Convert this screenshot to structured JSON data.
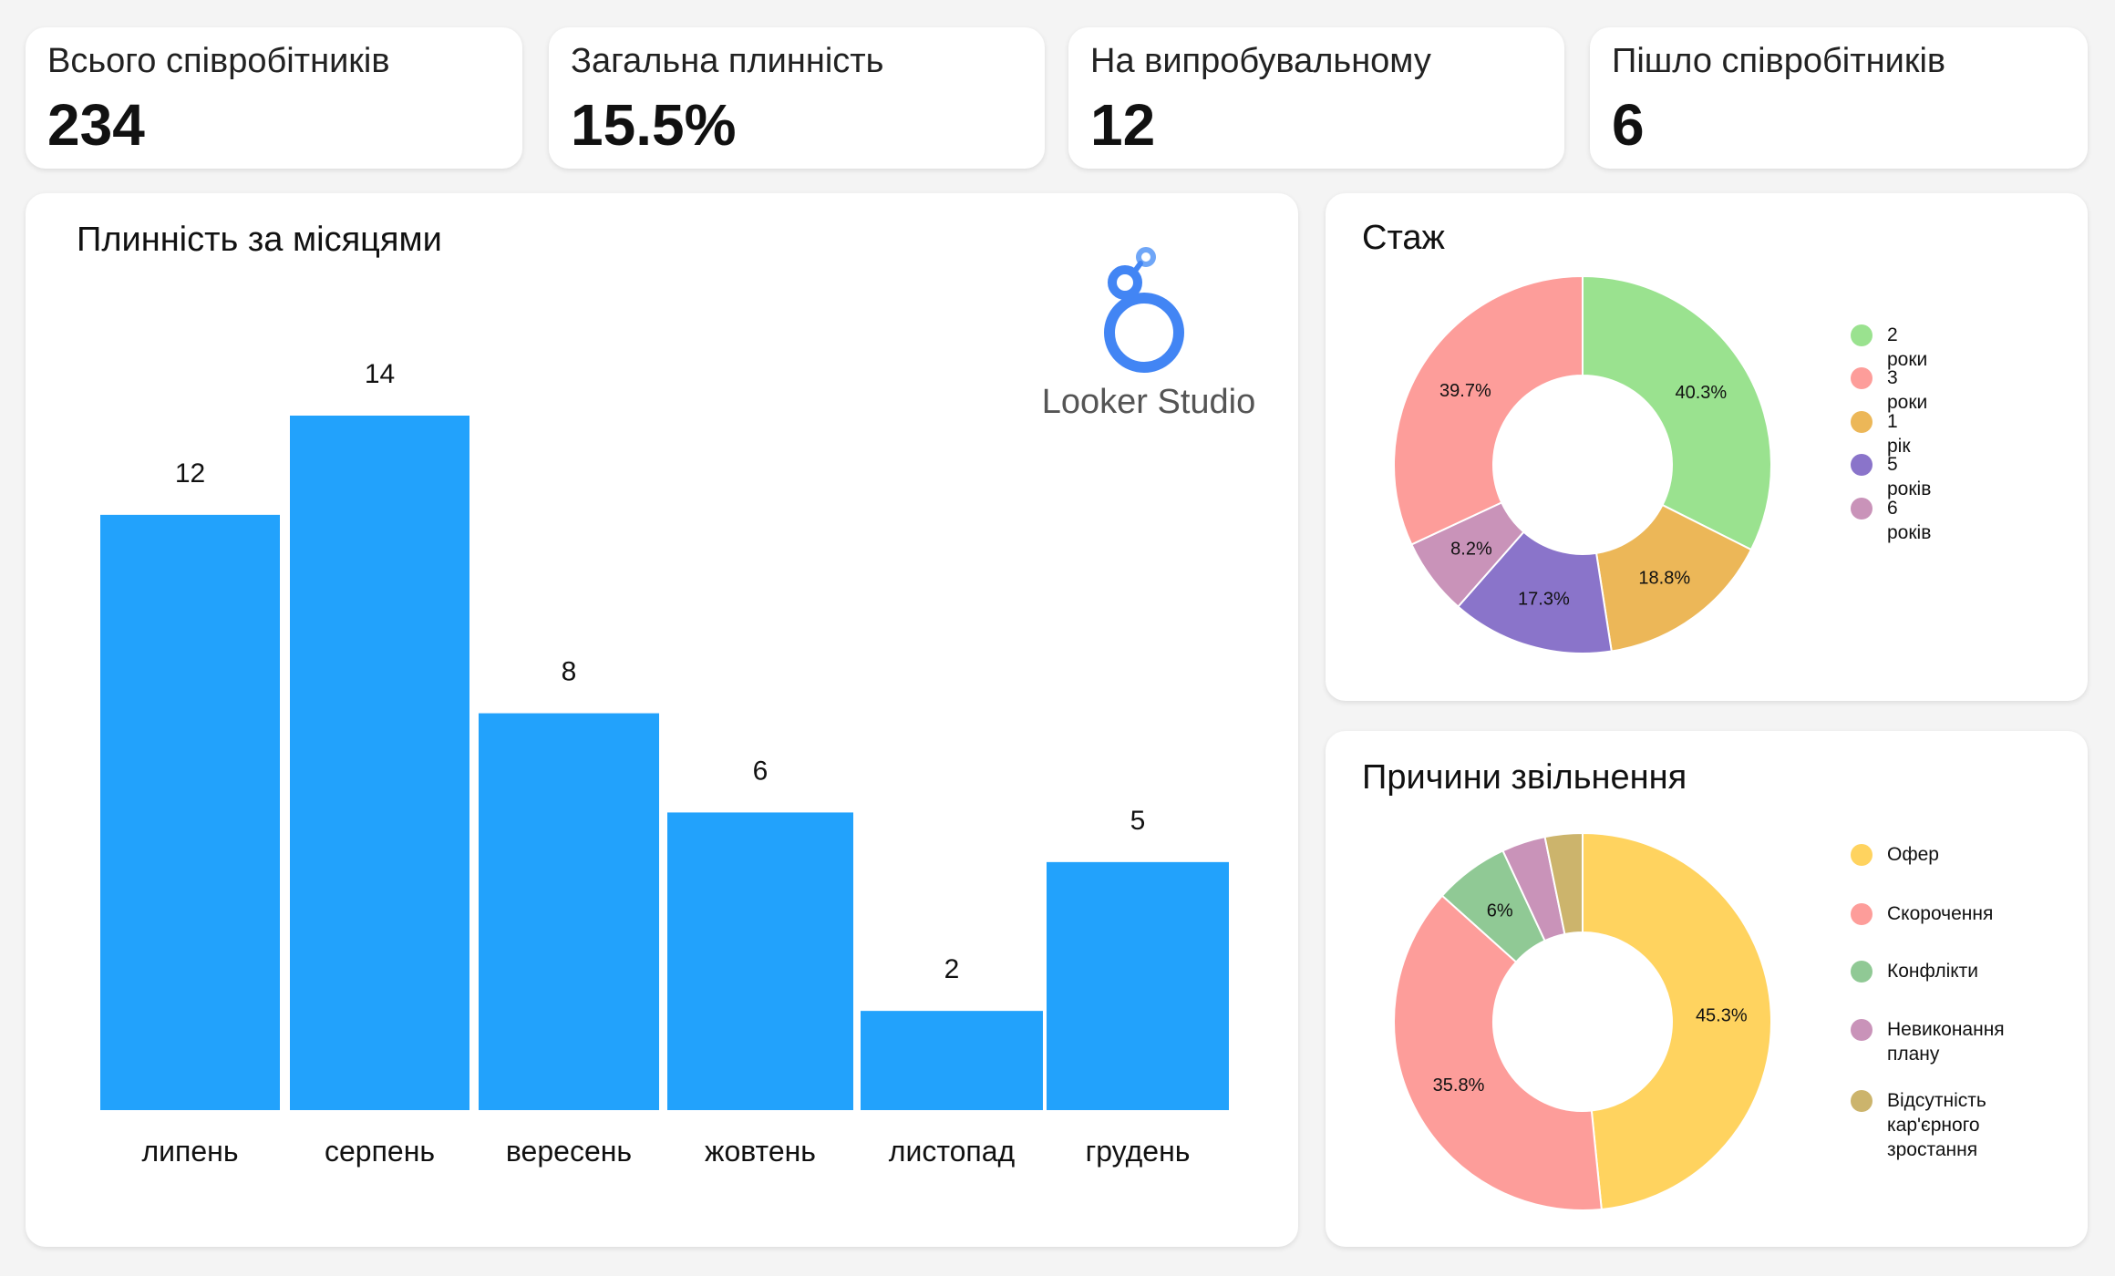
{
  "kpis": [
    {
      "label": "Всього співробітників",
      "value": "234"
    },
    {
      "label": "Загальна плинність",
      "value": "15.5%"
    },
    {
      "label": "На випробувальному",
      "value": "12"
    },
    {
      "label": "Пішло співробітників",
      "value": "6"
    }
  ],
  "logo": {
    "text": "Looker Studio",
    "icon": "looker-studio-logo",
    "color": "#4285f4"
  },
  "monthly_turnover": {
    "title": "Плинність за місяцями"
  },
  "tenure": {
    "title": "Стаж"
  },
  "reasons": {
    "title": "Причини звільнення"
  },
  "chart_data": [
    {
      "type": "bar",
      "title": "Плинність за місяцями",
      "categories": [
        "липень",
        "серпень",
        "вересень",
        "жовтень",
        "листопад",
        "грудень"
      ],
      "values": [
        12,
        14,
        8,
        6,
        2,
        5
      ],
      "color": "#22a2fc",
      "data_labels": true,
      "grid": false,
      "ylim": [
        0,
        14
      ]
    },
    {
      "type": "pie",
      "title": "Стаж",
      "donut": true,
      "legend": "right",
      "slices": [
        {
          "label": "2 роки",
          "value": 40.3,
          "display": "40.3%",
          "color": "#9ae28f"
        },
        {
          "label": "1 рік",
          "value": 18.8,
          "display": "18.8%",
          "color": "#ecb758"
        },
        {
          "label": "5 років",
          "value": 17.3,
          "display": "17.3%",
          "color": "#8a74ca"
        },
        {
          "label": "6 років",
          "value": 8.2,
          "display": "8.2%",
          "color": "#c993b9"
        },
        {
          "label": "3 роки",
          "value": 39.7,
          "display": "39.7%",
          "color": "#fd9d9a"
        }
      ],
      "legend_order": [
        "2 роки",
        "3 роки",
        "1 рік",
        "5 років",
        "6 років"
      ]
    },
    {
      "type": "pie",
      "title": "Причини звільнення",
      "donut": true,
      "legend": "right",
      "slices": [
        {
          "label": "Офер",
          "value": 45.3,
          "display": "45.3%",
          "color": "#ffd35f"
        },
        {
          "label": "Скорочення",
          "value": 35.8,
          "display": "35.8%",
          "color": "#fd9d9a"
        },
        {
          "label": "Конфлікти",
          "value": 6,
          "display": "6%",
          "color": "#90c995"
        },
        {
          "label": "Невиконання плану",
          "value": 3.5,
          "display": "",
          "color": "#c993b9"
        },
        {
          "label": "Відсутність кар'єрного зростання",
          "value": 3,
          "display": "",
          "color": "#ccb46c"
        }
      ],
      "slice_order": [
        "Офер",
        "Скорочення",
        "Конфлікти",
        "Невиконання плану",
        "Відсутність кар'єрного зростання"
      ],
      "legend_order": [
        "Офер",
        "Скорочення",
        "Конфлікти",
        "Невиконання плану",
        "Відсутність кар'єрного зростання"
      ]
    }
  ]
}
